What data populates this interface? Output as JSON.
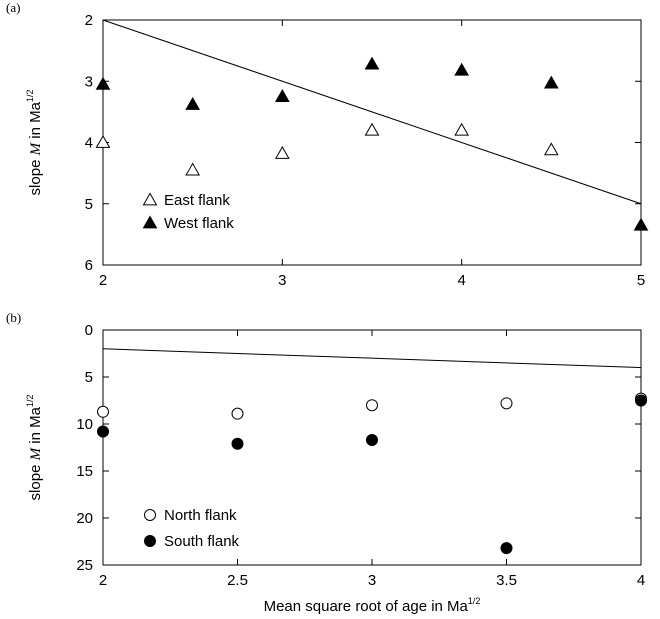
{
  "chart_data": [
    {
      "panel_label": "(a)",
      "type": "scatter",
      "ylabel": "slope M  in Ma",
      "ylabel_sup": "1/2",
      "xlim": [
        2,
        5
      ],
      "ylim": [
        2,
        6
      ],
      "y_inverted": true,
      "xticks": [
        "2",
        "3",
        "4",
        "5"
      ],
      "yticks": [
        "2",
        "3",
        "4",
        "5",
        "6"
      ],
      "series": [
        {
          "name": "East flank",
          "marker": "open-triangle",
          "x": [
            2,
            2.5,
            3,
            3.5,
            4,
            4.5
          ],
          "y": [
            4.0,
            4.45,
            4.18,
            3.8,
            3.8,
            4.12
          ]
        },
        {
          "name": "West flank",
          "marker": "filled-triangle",
          "x": [
            2,
            2.5,
            3,
            3.5,
            4,
            4.5,
            5
          ],
          "y": [
            3.05,
            3.38,
            3.25,
            2.72,
            2.82,
            3.03,
            5.35
          ]
        }
      ],
      "line": {
        "x": [
          2,
          5
        ],
        "y": [
          2,
          5
        ]
      }
    },
    {
      "panel_label": "(b)",
      "type": "scatter",
      "xlabel": "Mean square root of age in Ma",
      "xlabel_sup": "1/2",
      "ylabel": "slope M  in Ma",
      "ylabel_sup": "1/2",
      "xlim": [
        2,
        4
      ],
      "ylim": [
        0,
        25
      ],
      "y_inverted": true,
      "xticks": [
        "2",
        "2.5",
        "3",
        "3.5",
        "4"
      ],
      "yticks": [
        "0",
        "5",
        "10",
        "15",
        "20",
        "25"
      ],
      "series": [
        {
          "name": "North flank",
          "marker": "open-circle",
          "x": [
            2,
            2.5,
            3,
            3.5,
            4
          ],
          "y": [
            8.7,
            8.9,
            8.0,
            7.8,
            7.3
          ]
        },
        {
          "name": "South flank",
          "marker": "filled-circle",
          "x": [
            2,
            2.5,
            3,
            3.5,
            4
          ],
          "y": [
            10.8,
            12.1,
            11.7,
            23.2,
            7.5
          ]
        }
      ],
      "line": {
        "x": [
          2,
          4
        ],
        "y": [
          2,
          4
        ]
      }
    }
  ]
}
